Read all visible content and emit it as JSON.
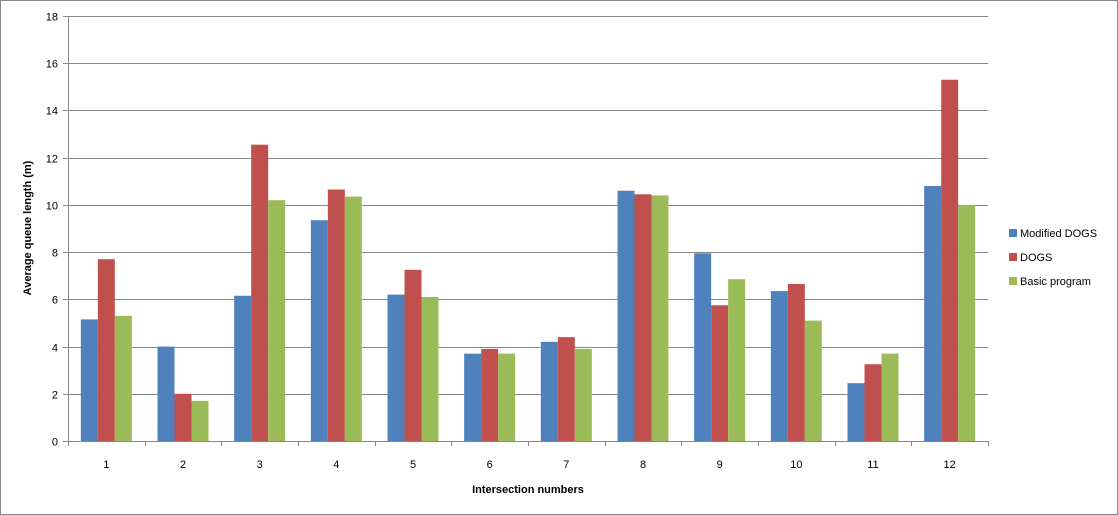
{
  "chart_data": {
    "type": "bar",
    "title": "",
    "xlabel": "Intersection numbers",
    "ylabel": "Average queue length (m)",
    "ylim": [
      0,
      18
    ],
    "yticks": [
      0,
      2,
      4,
      6,
      8,
      10,
      12,
      14,
      16,
      18
    ],
    "grid": true,
    "legend_position": "right",
    "categories": [
      "1",
      "2",
      "3",
      "4",
      "5",
      "6",
      "7",
      "8",
      "9",
      "10",
      "11",
      "12"
    ],
    "series": [
      {
        "name": "Modified DOGS",
        "color": "#4F81BD",
        "values": [
          5.15,
          4.0,
          6.15,
          9.35,
          6.2,
          3.7,
          4.2,
          10.6,
          7.95,
          6.35,
          2.45,
          10.8
        ]
      },
      {
        "name": "DOGS",
        "color": "#C0504D",
        "values": [
          7.7,
          2.0,
          12.55,
          10.65,
          7.25,
          3.9,
          4.4,
          10.45,
          5.75,
          6.65,
          3.25,
          15.3
        ]
      },
      {
        "name": "Basic program",
        "color": "#9BBB59",
        "values": [
          5.3,
          1.7,
          10.2,
          10.35,
          6.1,
          3.7,
          3.9,
          10.4,
          6.85,
          5.1,
          3.7,
          10.0
        ]
      }
    ]
  }
}
